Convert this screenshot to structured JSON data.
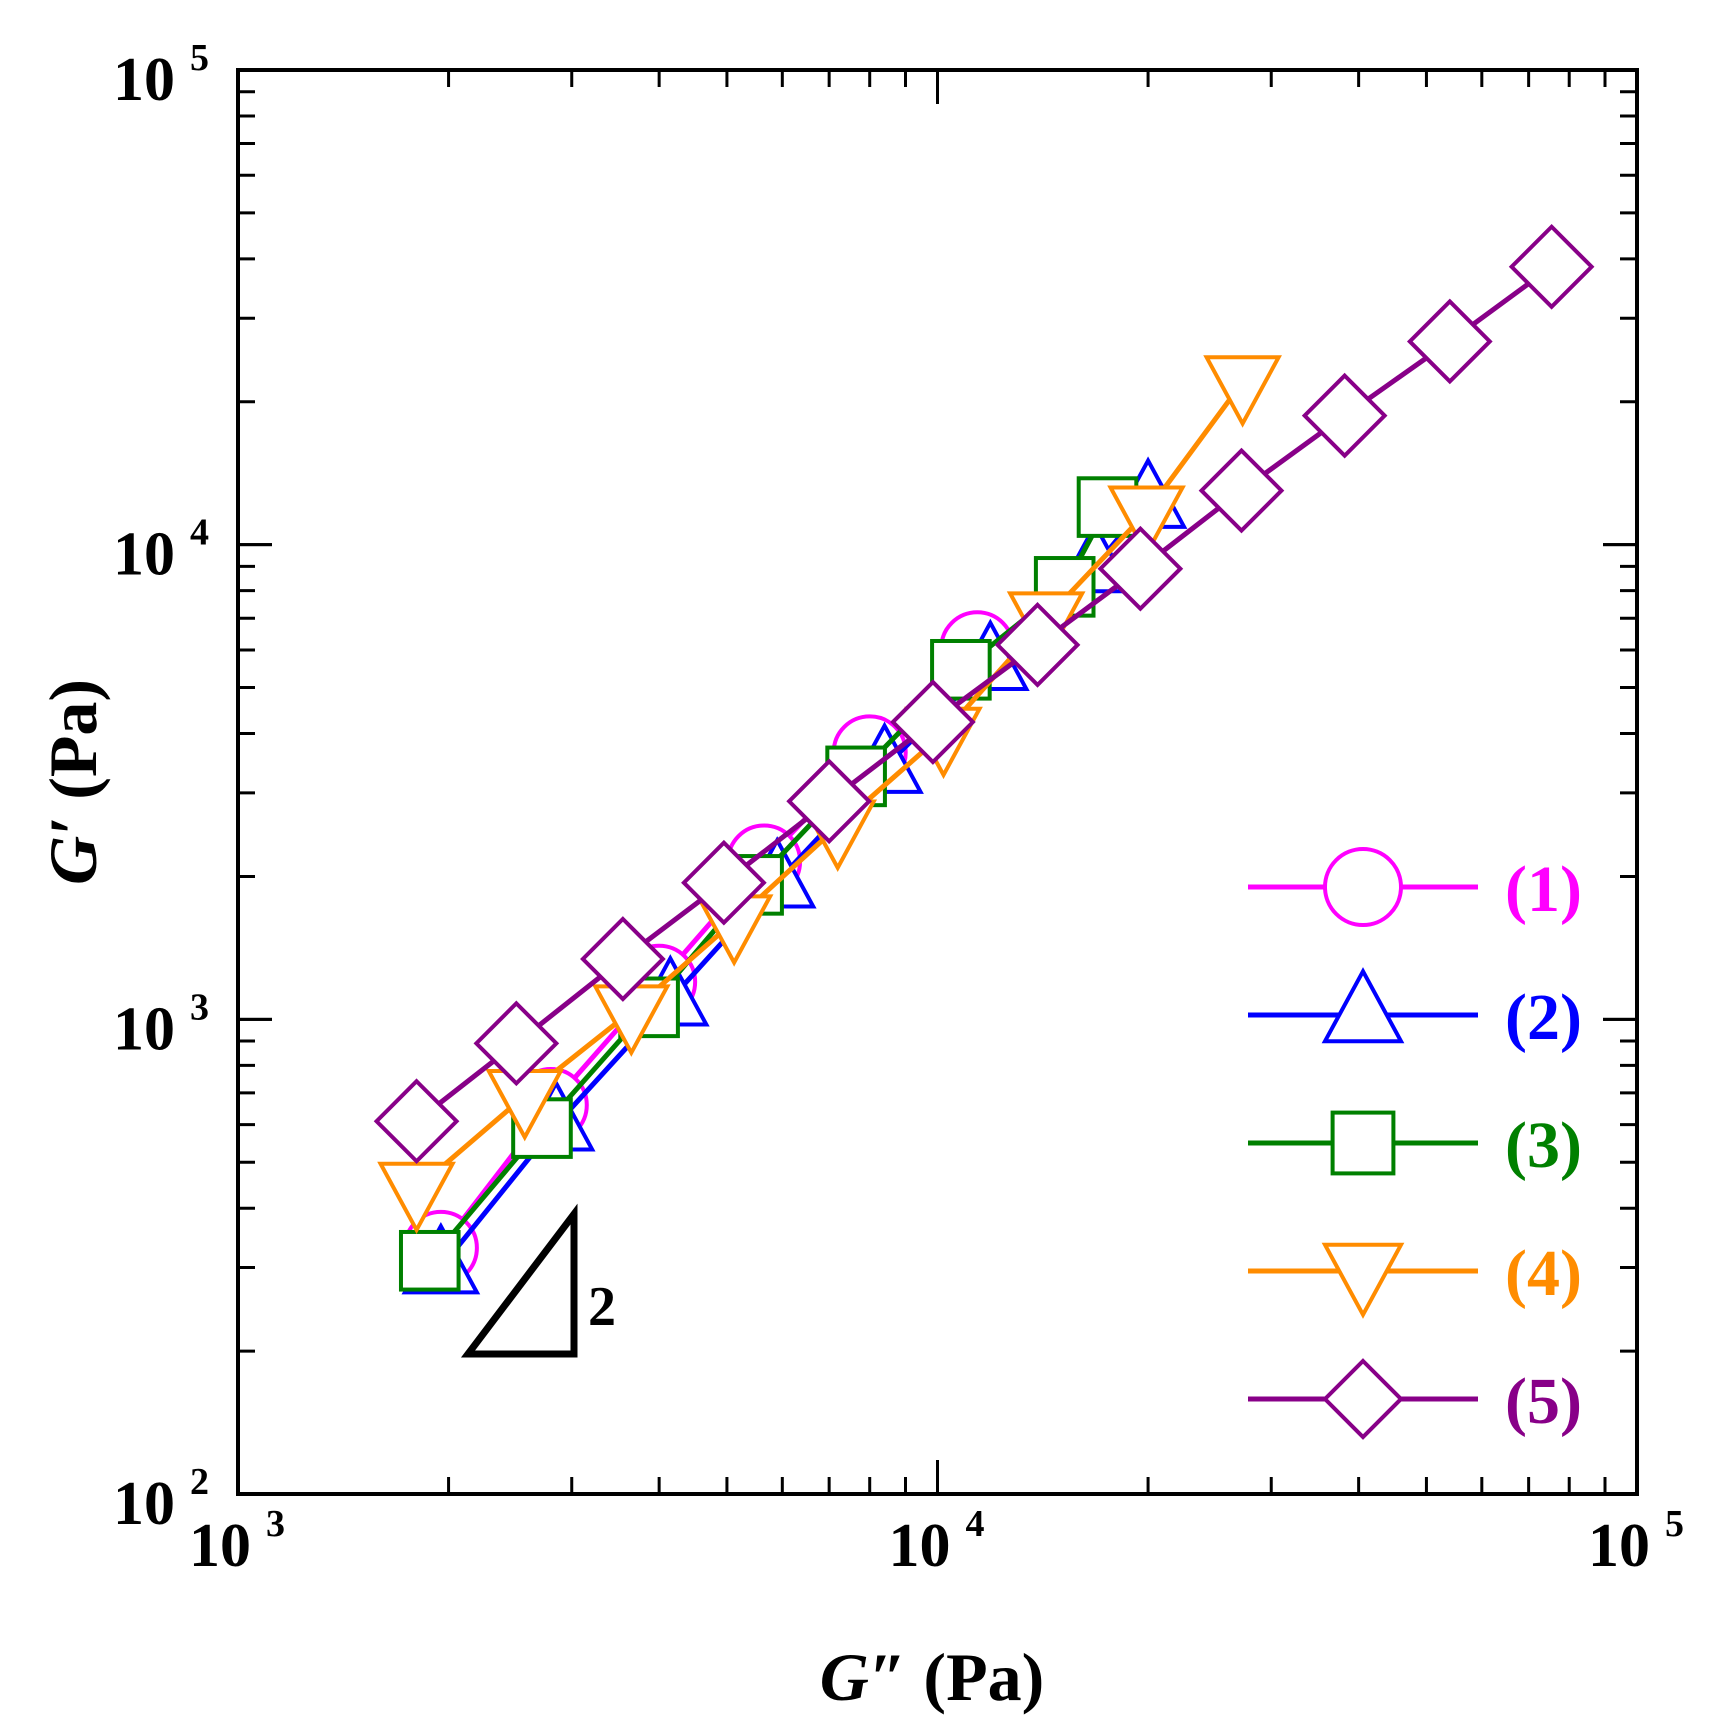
{
  "chart_data": {
    "type": "scatter",
    "title": "",
    "xlabel": "G″ (Pa)",
    "ylabel": "G′ (Pa)",
    "xscale": "log",
    "yscale": "log",
    "xlim": [
      1000,
      100000
    ],
    "ylim": [
      100,
      100000
    ],
    "x_ticks": [
      {
        "base": "10",
        "exp": "3"
      },
      {
        "base": "10",
        "exp": "4"
      },
      {
        "base": "10",
        "exp": "5"
      }
    ],
    "y_ticks": [
      {
        "base": "10",
        "exp": "2"
      },
      {
        "base": "10",
        "exp": "3"
      },
      {
        "base": "10",
        "exp": "4"
      },
      {
        "base": "10",
        "exp": "5"
      }
    ],
    "legend_position": "bottom-right",
    "slope_annotation": {
      "label": "2",
      "slope": 2
    },
    "series": [
      {
        "name": "(1)",
        "color": "#ff00ff",
        "marker": "circle",
        "x": [
          1950,
          2800,
          4000,
          5650,
          8000,
          11400
        ],
        "y": [
          330,
          660,
          1200,
          2150,
          3650,
          6050
        ]
      },
      {
        "name": "(2)",
        "color": "#0000ff",
        "marker": "triangle-up",
        "x": [
          1950,
          2850,
          4150,
          5900,
          8400,
          11900,
          16800,
          20000
        ],
        "y": [
          300,
          600,
          1100,
          1950,
          3400,
          5600,
          9000,
          12300
        ]
      },
      {
        "name": "(3)",
        "color": "#008000",
        "marker": "square",
        "x": [
          1880,
          2720,
          3870,
          5450,
          7650,
          10800,
          15200,
          17500
        ],
        "y": [
          310,
          590,
          1060,
          1920,
          3250,
          5450,
          8150,
          12000
        ]
      },
      {
        "name": "(4)",
        "color": "#ff8c00",
        "marker": "triangle-down",
        "x": [
          1800,
          2570,
          3650,
          5120,
          7200,
          10200,
          14300,
          19900,
          27300
        ],
        "y": [
          440,
          690,
          1040,
          1610,
          2550,
          4000,
          7000,
          11700,
          22000
        ]
      },
      {
        "name": "(5)",
        "color": "#880088",
        "marker": "diamond",
        "x": [
          1800,
          2500,
          3550,
          4950,
          7000,
          9850,
          13900,
          19500,
          27200,
          38200,
          54000,
          75500
        ],
        "y": [
          610,
          890,
          1340,
          1940,
          2880,
          4230,
          6150,
          8900,
          13000,
          18700,
          26800,
          38500
        ]
      }
    ]
  }
}
